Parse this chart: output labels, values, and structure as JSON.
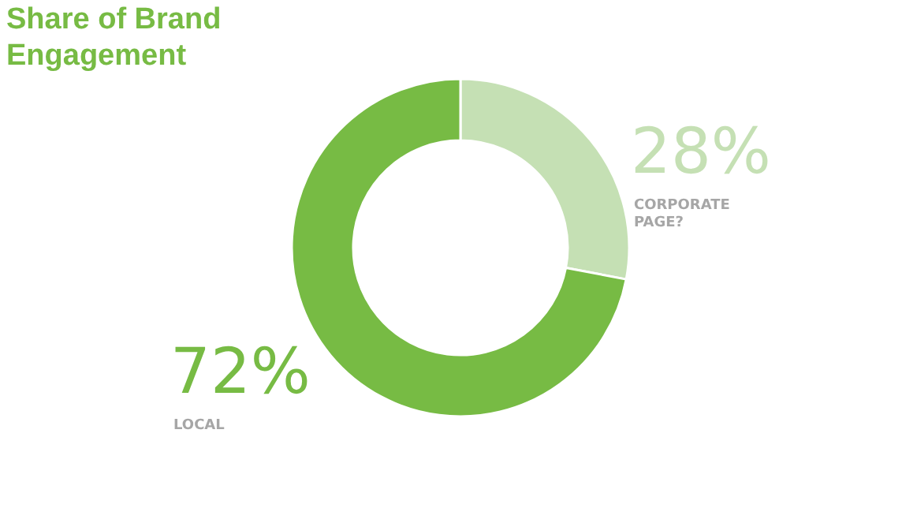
{
  "chart_data": {
    "type": "donut",
    "title": "Share of Brand Engagement",
    "categories": [
      "CORPORATE PAGE?",
      "LOCAL"
    ],
    "values": [
      28,
      72
    ],
    "colors": [
      "#c5e0b4",
      "#77bb44"
    ],
    "value_labels": [
      "28%",
      "72%"
    ]
  }
}
